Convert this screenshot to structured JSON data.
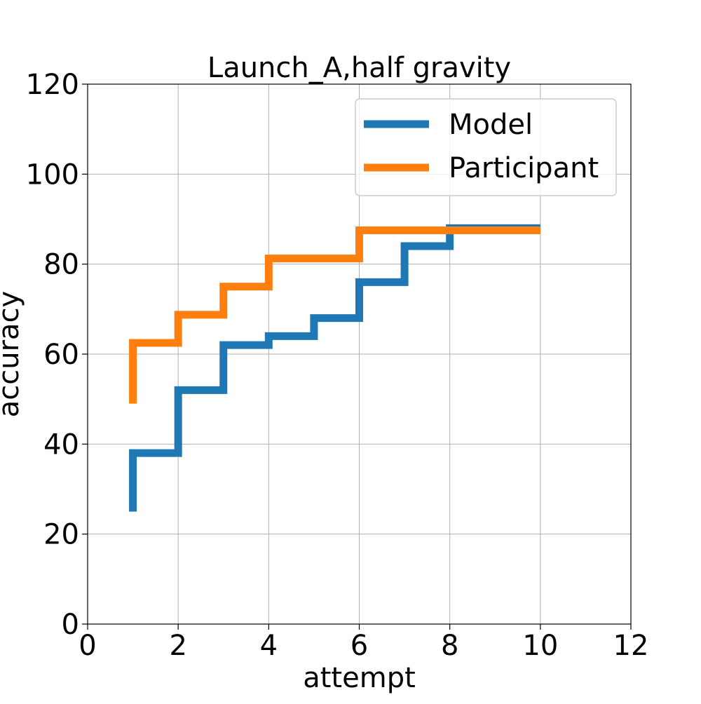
{
  "chart_data": {
    "type": "line",
    "step": "post",
    "title": "Launch_A,half gravity",
    "xlabel": "attempt",
    "ylabel": "accuracy",
    "xlim": [
      0,
      12
    ],
    "ylim": [
      0,
      120
    ],
    "xticks": [
      0,
      2,
      4,
      6,
      8,
      10,
      12
    ],
    "yticks": [
      0,
      20,
      40,
      60,
      80,
      100,
      120
    ],
    "grid": true,
    "legend_position": "top-right",
    "series": [
      {
        "name": "Model",
        "color": "#1f77b4",
        "x": [
          1,
          2,
          3,
          4,
          5,
          6,
          7,
          8,
          9,
          10
        ],
        "y": [
          38,
          52,
          62,
          64,
          68,
          76,
          84,
          88,
          88,
          88
        ],
        "start": 25
      },
      {
        "name": "Participant",
        "color": "#ff7f0e",
        "x": [
          1,
          2,
          3,
          4,
          5,
          6,
          7,
          8,
          9,
          10
        ],
        "y": [
          62.5,
          68.75,
          75,
          81.25,
          81.25,
          87.5,
          87.5,
          87.5,
          87.5,
          87.5
        ],
        "start": 49
      }
    ]
  }
}
